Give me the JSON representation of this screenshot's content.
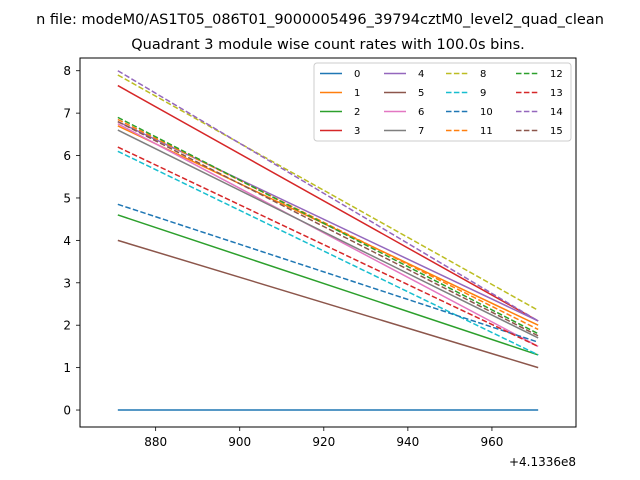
{
  "suptitle": "n file: modeM0/AS1T05_086T01_9000005496_39794cztM0_level2_quad_clean",
  "chart_data": {
    "type": "line",
    "title": "Quadrant 3 module wise count rates with 100.0s bins.",
    "xlabel": "",
    "ylabel": "",
    "x_offset_label": "+4.1336e8",
    "x": [
      871,
      971
    ],
    "xlim": [
      862,
      980
    ],
    "ylim": [
      -0.4,
      8.3
    ],
    "xticks": [
      880,
      900,
      920,
      940,
      960
    ],
    "xtick_labels": [
      "880",
      "900",
      "920",
      "940",
      "960"
    ],
    "yticks": [
      0,
      1,
      2,
      3,
      4,
      5,
      6,
      7,
      8
    ],
    "ytick_labels": [
      "0",
      "1",
      "2",
      "3",
      "4",
      "5",
      "6",
      "7",
      "8"
    ],
    "grid": false,
    "legend_position": "top-right",
    "legend_columns": 4,
    "series": [
      {
        "name": "0",
        "values": [
          0.0,
          0.0
        ],
        "color": "#1f77b4",
        "dash": "solid"
      },
      {
        "name": "1",
        "values": [
          6.7,
          2.0
        ],
        "color": "#ff7f0e",
        "dash": "solid"
      },
      {
        "name": "2",
        "values": [
          4.6,
          1.3
        ],
        "color": "#2ca02c",
        "dash": "solid"
      },
      {
        "name": "3",
        "values": [
          7.65,
          2.1
        ],
        "color": "#d62728",
        "dash": "solid"
      },
      {
        "name": "4",
        "values": [
          6.8,
          2.1
        ],
        "color": "#9467bd",
        "dash": "solid"
      },
      {
        "name": "5",
        "values": [
          4.0,
          1.0
        ],
        "color": "#8c564b",
        "dash": "solid"
      },
      {
        "name": "6",
        "values": [
          6.75,
          1.5
        ],
        "color": "#e377c2",
        "dash": "solid"
      },
      {
        "name": "7",
        "values": [
          6.6,
          1.7
        ],
        "color": "#7f7f7f",
        "dash": "solid"
      },
      {
        "name": "8",
        "values": [
          7.9,
          2.35
        ],
        "color": "#bcbd22",
        "dash": "dashed"
      },
      {
        "name": "9",
        "values": [
          6.1,
          1.3
        ],
        "color": "#17becf",
        "dash": "dashed"
      },
      {
        "name": "10",
        "values": [
          4.85,
          1.6
        ],
        "color": "#1f77b4",
        "dash": "dashed"
      },
      {
        "name": "11",
        "values": [
          6.85,
          1.9
        ],
        "color": "#ff7f0e",
        "dash": "dashed"
      },
      {
        "name": "12",
        "values": [
          6.9,
          1.8
        ],
        "color": "#2ca02c",
        "dash": "dashed"
      },
      {
        "name": "13",
        "values": [
          6.2,
          1.5
        ],
        "color": "#d62728",
        "dash": "dashed"
      },
      {
        "name": "14",
        "values": [
          8.0,
          2.1
        ],
        "color": "#9467bd",
        "dash": "dashed"
      },
      {
        "name": "15",
        "values": [
          6.8,
          1.75
        ],
        "color": "#8c564b",
        "dash": "dashed"
      }
    ]
  }
}
